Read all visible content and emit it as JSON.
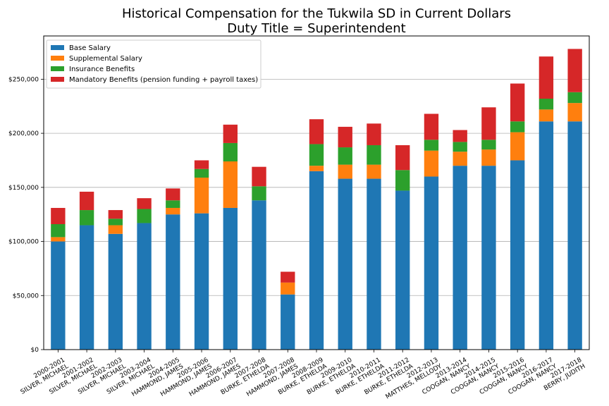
{
  "chart_data": {
    "type": "bar",
    "stacked": true,
    "title": "Historical Compensation for the Tukwila SD in Current Dollars",
    "subtitle": "Duty Title = Superintendent",
    "xlabel": "",
    "ylabel": "",
    "ylim": [
      0,
      290000
    ],
    "yticks": [
      0,
      50000,
      100000,
      150000,
      200000,
      250000
    ],
    "ytick_labels": [
      "$0",
      "$50,000",
      "$100,000",
      "$150,000",
      "$200,000",
      "$250,000"
    ],
    "grid": "y",
    "legend_position": "top-left",
    "categories": [
      [
        "2000-2001",
        "SILVER, MICHAEL"
      ],
      [
        "2001-2002",
        "SILVER, MICHAEL"
      ],
      [
        "2002-2003",
        "SILVER, MICHAEL"
      ],
      [
        "2003-2004",
        "SILVER, MICHAEL"
      ],
      [
        "2004-2005",
        "HAMMOND, JAMES"
      ],
      [
        "2005-2006",
        "HAMMOND, JAMES"
      ],
      [
        "2006-2007",
        "HAMMOND, JAMES"
      ],
      [
        "2007-2008",
        "BURKE, ETHELDA"
      ],
      [
        "2007-2008",
        "HAMMOND, JAMES"
      ],
      [
        "2008-2009",
        "BURKE, ETHELDA"
      ],
      [
        "2009-2010",
        "BURKE, ETHELDA"
      ],
      [
        "2010-2011",
        "BURKE, ETHELDA"
      ],
      [
        "2011-2012",
        "BURKE, ETHELDA"
      ],
      [
        "2012-2013",
        "MATTHES, MELLODY"
      ],
      [
        "2013-2014",
        "COOGAN, NANCY"
      ],
      [
        "2014-2015",
        "COOGAN, NANCY"
      ],
      [
        "2015-2016",
        "COOGAN, NANCY"
      ],
      [
        "2016-2017",
        "COOGAN, NANCY"
      ],
      [
        "2017-2018",
        "BERRY, JUDITH"
      ]
    ],
    "series": [
      {
        "name": "Base Salary",
        "color": "#1f77b4",
        "values": [
          100000,
          115000,
          107000,
          117000,
          125000,
          126000,
          131000,
          138000,
          51000,
          165000,
          158000,
          158000,
          147000,
          160000,
          170000,
          170000,
          175000,
          211000,
          211000
        ]
      },
      {
        "name": "Supplemental Salary",
        "color": "#ff7f0e",
        "values": [
          4000,
          0,
          8000,
          0,
          6000,
          33000,
          43000,
          0,
          11000,
          5000,
          13000,
          13000,
          0,
          24000,
          13000,
          15000,
          26000,
          11000,
          17000
        ]
      },
      {
        "name": "Insurance Benefits",
        "color": "#2ca02c",
        "values": [
          12000,
          14000,
          6000,
          13000,
          7000,
          8000,
          17000,
          13000,
          0,
          20000,
          16000,
          18000,
          19000,
          10000,
          9000,
          9000,
          10000,
          10000,
          10000
        ]
      },
      {
        "name": "Mandatory Benefits (pension funding + payroll taxes)",
        "color": "#d62728",
        "values": [
          15000,
          17000,
          8000,
          10000,
          11000,
          8000,
          17000,
          18000,
          10000,
          23000,
          19000,
          20000,
          23000,
          24000,
          11000,
          30000,
          35000,
          39000,
          40000
        ]
      }
    ]
  }
}
